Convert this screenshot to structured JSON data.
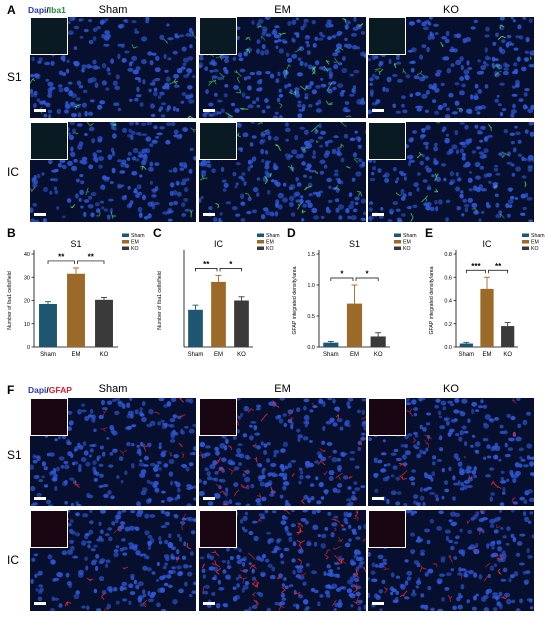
{
  "figure": {
    "panel_letters": {
      "A": "A",
      "B": "B",
      "C": "C",
      "D": "D",
      "E": "E",
      "F": "F"
    },
    "top": {
      "stain_a": "Dapi",
      "stain_sep": "/",
      "stain_b": "Iba1",
      "columns": [
        "Sham",
        "EM",
        "KO"
      ],
      "rows": [
        "S1",
        "IC"
      ],
      "colors": {
        "nuclei": "#3058d8",
        "marker": "#4fd06a"
      }
    },
    "bottom": {
      "stain_a": "Dapi",
      "stain_sep": "/",
      "stain_b": "GFAP",
      "columns": [
        "Sham",
        "EM",
        "KO"
      ],
      "rows": [
        "S1",
        "IC"
      ],
      "colors": {
        "nuclei": "#3058d8",
        "marker": "#e0283a"
      }
    }
  },
  "chart_data": [
    {
      "id": "B",
      "type": "bar",
      "title": "S1",
      "ylabel": "Number of Iba1 cells/field",
      "categories": [
        "Sham",
        "EM",
        "KO"
      ],
      "values": [
        18.5,
        31.5,
        20.3
      ],
      "errors": [
        1.0,
        2.5,
        1.0
      ],
      "ylim": [
        0,
        40
      ],
      "yticks": [
        "0",
        "10",
        "20",
        "30",
        "40"
      ],
      "legend": [
        "Sham",
        "EM",
        "KO"
      ],
      "significance": [
        "**",
        "**"
      ]
    },
    {
      "id": "C",
      "type": "bar",
      "title": "IC",
      "ylabel": "Number of Iba1 cells/field",
      "categories": [
        "Sham",
        "EM",
        "KO"
      ],
      "values": [
        20,
        35,
        25
      ],
      "errors": [
        2.5,
        3.5,
        2.0
      ],
      "ylim": [
        0,
        50
      ],
      "yticks": [],
      "legend": [
        "Sham",
        "EM",
        "KO"
      ],
      "significance": [
        "**",
        "*"
      ]
    },
    {
      "id": "D",
      "type": "bar",
      "title": "S1",
      "ylabel": "GFAP integrated density/area",
      "categories": [
        "Sham",
        "EM",
        "KO"
      ],
      "values": [
        0.07,
        0.7,
        0.17
      ],
      "errors": [
        0.02,
        0.3,
        0.06
      ],
      "ylim": [
        0,
        1.5
      ],
      "yticks": [
        "0.0",
        "0.5",
        "1.0",
        "1.5"
      ],
      "legend": [
        "Sham",
        "EM",
        "KO"
      ],
      "significance": [
        "*",
        "*"
      ]
    },
    {
      "id": "E",
      "type": "bar",
      "title": "IC",
      "ylabel": "GFAP integrated density/area",
      "categories": [
        "Sham",
        "EM",
        "KO"
      ],
      "values": [
        0.03,
        0.5,
        0.18
      ],
      "errors": [
        0.01,
        0.1,
        0.03
      ],
      "ylim": [
        0,
        0.8
      ],
      "yticks": [
        "0.0",
        "0.2",
        "0.4",
        "0.6",
        "0.8"
      ],
      "legend": [
        "Sham",
        "EM",
        "KO"
      ],
      "significance": [
        "***",
        "**"
      ]
    }
  ],
  "bar_colors": [
    "#1c5670",
    "#9c6a28",
    "#3a3a3a"
  ]
}
